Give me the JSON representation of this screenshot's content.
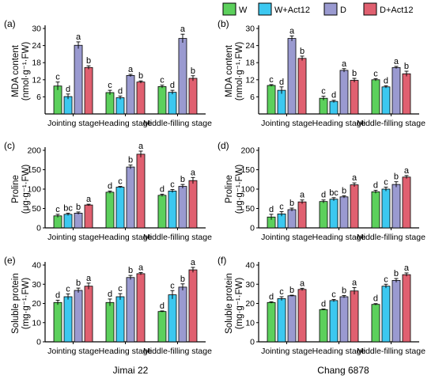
{
  "legend": [
    {
      "label": "W",
      "color": "#5cd05c"
    },
    {
      "label": "W+Act12",
      "color": "#3cc8f0"
    },
    {
      "label": "D",
      "color": "#9a9ad0"
    },
    {
      "label": "D+Act12",
      "color": "#e06070"
    }
  ],
  "cultivars": [
    "Jimai 22",
    "Chang 6878"
  ],
  "chart_data": [
    {
      "type": "bar",
      "panel": "(a)",
      "cultivar": "Jimai 22",
      "ylabel_lines": [
        "MDA  content",
        "(nmol·g⁻¹·FW)"
      ],
      "categories": [
        "Jointing stage",
        "Heading stage",
        "Middle-filling stage"
      ],
      "ylim": [
        0,
        30
      ],
      "yticks": [
        6,
        12,
        18,
        24,
        30
      ],
      "series": [
        {
          "name": "W",
          "values": [
            9.8,
            7.5,
            9.6
          ],
          "errors": [
            1.4,
            0.8,
            0.5
          ],
          "letters": [
            "c",
            "c",
            "c"
          ]
        },
        {
          "name": "W+Act12",
          "values": [
            6.1,
            5.7,
            7.6
          ],
          "errors": [
            0.9,
            0.6,
            0.7
          ],
          "letters": [
            "d",
            "d",
            "d"
          ]
        },
        {
          "name": "D",
          "values": [
            24.1,
            13.5,
            26.5
          ],
          "errors": [
            1.2,
            0.4,
            1.5
          ],
          "letters": [
            "a",
            "a",
            "a"
          ]
        },
        {
          "name": "D+Act12",
          "values": [
            16.3,
            11.2,
            12.5
          ],
          "errors": [
            0.6,
            0.4,
            0.9
          ],
          "letters": [
            "b",
            "b",
            "b"
          ]
        }
      ]
    },
    {
      "type": "bar",
      "panel": "(b)",
      "cultivar": "Chang 6878",
      "ylabel_lines": [
        "MDA  content",
        "(nmol·g⁻¹·FW)"
      ],
      "categories": [
        "Jointing stage",
        "Heading stage",
        "Middle-filling stage"
      ],
      "ylim": [
        0,
        30
      ],
      "yticks": [
        6,
        12,
        18,
        24,
        30
      ],
      "series": [
        {
          "name": "W",
          "values": [
            10.0,
            5.5,
            12.0
          ],
          "errors": [
            0.3,
            0.7,
            0.4
          ],
          "letters": [
            "c",
            "c",
            "c"
          ]
        },
        {
          "name": "W+Act12",
          "values": [
            8.3,
            4.4,
            9.5
          ],
          "errors": [
            1.2,
            0.4,
            0.4
          ],
          "letters": [
            "d",
            "d",
            "d"
          ]
        },
        {
          "name": "D",
          "values": [
            26.5,
            15.3,
            16.3
          ],
          "errors": [
            0.9,
            0.6,
            0.4
          ],
          "letters": [
            "a",
            "a",
            "a"
          ]
        },
        {
          "name": "D+Act12",
          "values": [
            19.5,
            11.8,
            14.1
          ],
          "errors": [
            0.8,
            0.7,
            0.9
          ],
          "letters": [
            "b",
            "b",
            "b"
          ]
        }
      ]
    },
    {
      "type": "bar",
      "panel": "(c)",
      "cultivar": "Jimai 22",
      "ylabel_lines": [
        "Proline",
        "(μg·g⁻¹·FW)"
      ],
      "categories": [
        "Jointing stage",
        "Heading stage",
        "Middle-filling stage"
      ],
      "ylim": [
        0,
        200
      ],
      "yticks": [
        0,
        50,
        100,
        150,
        200
      ],
      "series": [
        {
          "name": "W",
          "values": [
            31,
            92,
            84
          ],
          "errors": [
            4,
            3,
            3
          ],
          "letters": [
            "c",
            "d",
            "d"
          ]
        },
        {
          "name": "W+Act12",
          "values": [
            35,
            105,
            95
          ],
          "errors": [
            3,
            2,
            4
          ],
          "letters": [
            "bc",
            "c",
            "c"
          ]
        },
        {
          "name": "D",
          "values": [
            38,
            157,
            107
          ],
          "errors": [
            3,
            5,
            5
          ],
          "letters": [
            "b",
            "b",
            "b"
          ]
        },
        {
          "name": "D+Act12",
          "values": [
            59,
            190,
            122
          ],
          "errors": [
            2,
            8,
            8
          ],
          "letters": [
            "a",
            "a",
            "a"
          ]
        }
      ]
    },
    {
      "type": "bar",
      "panel": "(d)",
      "cultivar": "Chang 6878",
      "ylabel_lines": [
        "Proline",
        "(μg·g⁻¹·FW)"
      ],
      "categories": [
        "Jointing stage",
        "Heading stage",
        "Middle-filling stage"
      ],
      "ylim": [
        0,
        200
      ],
      "yticks": [
        0,
        50,
        100,
        150,
        200
      ],
      "series": [
        {
          "name": "W",
          "values": [
            28,
            68,
            93
          ],
          "errors": [
            7,
            4,
            4
          ],
          "letters": [
            "d",
            "d",
            "d"
          ]
        },
        {
          "name": "W+Act12",
          "values": [
            36,
            74,
            100
          ],
          "errors": [
            6,
            4,
            5
          ],
          "letters": [
            "c",
            "bc",
            "c"
          ]
        },
        {
          "name": "D",
          "values": [
            47,
            80,
            112
          ],
          "errors": [
            4,
            3,
            7
          ],
          "letters": [
            "b",
            "b",
            "b"
          ]
        },
        {
          "name": "D+Act12",
          "values": [
            67,
            111,
            131
          ],
          "errors": [
            5,
            5,
            4
          ],
          "letters": [
            "a",
            "a",
            "a"
          ]
        }
      ]
    },
    {
      "type": "bar",
      "panel": "(e)",
      "cultivar": "Jimai 22",
      "ylabel_lines": [
        "Soluble protein",
        "(mg·g⁻¹·FW)"
      ],
      "categories": [
        "Jointing stage",
        "Heading stage",
        "Middle-filling stage"
      ],
      "ylim": [
        0,
        40
      ],
      "yticks": [
        0,
        10,
        20,
        30,
        40
      ],
      "series": [
        {
          "name": "W",
          "values": [
            20.5,
            20.5,
            15.8
          ],
          "errors": [
            1.2,
            1.8,
            0.3
          ],
          "letters": [
            "d",
            "d",
            "d"
          ]
        },
        {
          "name": "W+Act12",
          "values": [
            23.5,
            23.5,
            24.5
          ],
          "errors": [
            1.5,
            1.6,
            2.2
          ],
          "letters": [
            "c",
            "c",
            "c"
          ]
        },
        {
          "name": "D",
          "values": [
            26.8,
            33.5,
            28.5
          ],
          "errors": [
            1.2,
            1.1,
            1.7
          ],
          "letters": [
            "b",
            "b",
            "b"
          ]
        },
        {
          "name": "D+Act12",
          "values": [
            29.0,
            35.5,
            37.5
          ],
          "errors": [
            1.6,
            0.6,
            1.3
          ],
          "letters": [
            "a",
            "a",
            "a"
          ]
        }
      ]
    },
    {
      "type": "bar",
      "panel": "(f)",
      "cultivar": "Chang 6878",
      "ylabel_lines": [
        "Soluble protein",
        "(mg·g⁻¹·FW)"
      ],
      "categories": [
        "Jointing stage",
        "Heading stage",
        "Middle-filling stage"
      ],
      "ylim": [
        0,
        40
      ],
      "yticks": [
        0,
        10,
        20,
        30,
        40
      ],
      "series": [
        {
          "name": "W",
          "values": [
            20.5,
            16.8,
            19.5
          ],
          "errors": [
            0.4,
            0.3,
            0.4
          ],
          "letters": [
            "d",
            "d",
            "d"
          ]
        },
        {
          "name": "W+Act12",
          "values": [
            22.5,
            21.5,
            29.0
          ],
          "errors": [
            1.0,
            0.6,
            1.0
          ],
          "letters": [
            "c",
            "c",
            "c"
          ]
        },
        {
          "name": "D",
          "values": [
            24.0,
            23.5,
            32.0
          ],
          "errors": [
            0.3,
            0.6,
            1.0
          ],
          "letters": [
            "b",
            "b",
            "b"
          ]
        },
        {
          "name": "D+Act12",
          "values": [
            27.3,
            26.5,
            35.0
          ],
          "errors": [
            0.6,
            1.8,
            0.9
          ],
          "letters": [
            "a",
            "a",
            "a"
          ]
        }
      ]
    }
  ]
}
